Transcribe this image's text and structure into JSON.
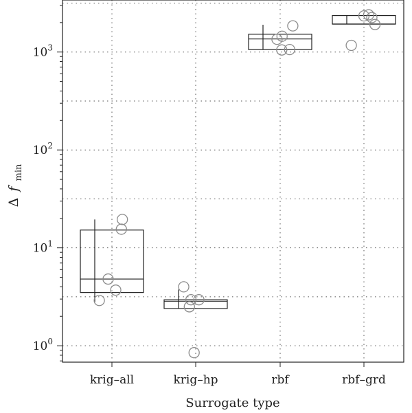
{
  "chart_data": {
    "type": "box",
    "xlabel": "Surrogate type",
    "ylabel_main": "Δ",
    "ylabel_italic": "f",
    "ylabel_sub": "min",
    "y_scale": "log",
    "ylim": [
      0.68,
      3400
    ],
    "y_ticks": [
      {
        "value": 1,
        "base": "10",
        "exp": "0"
      },
      {
        "value": 10,
        "base": "10",
        "exp": "1"
      },
      {
        "value": 100,
        "base": "10",
        "exp": "2"
      },
      {
        "value": 1000,
        "base": "10",
        "exp": "3"
      }
    ],
    "grid": true,
    "categories": [
      "krig–all",
      "krig–hp",
      "rbf",
      "rbf–grd"
    ],
    "boxes": [
      {
        "q1": 3.5,
        "median": 4.8,
        "q3": 15.2,
        "whisker_low": 2.8,
        "whisker_high": 19.5
      },
      {
        "q1": 2.4,
        "median": 2.85,
        "q3": 2.95,
        "whisker_low": 2.4,
        "whisker_high": 3.75
      },
      {
        "q1": 1060,
        "median": 1360,
        "q3": 1520,
        "whisker_low": 1060,
        "whisker_high": 1900
      },
      {
        "q1": 1930,
        "median": 1930,
        "q3": 2360,
        "whisker_low": 1930,
        "whisker_high": 2360
      }
    ],
    "points": [
      [
        {
          "x": -0.4,
          "y": 2.9
        },
        {
          "x": -0.12,
          "y": 4.8
        },
        {
          "x": 0.12,
          "y": 3.7
        },
        {
          "x": 0.3,
          "y": 15.5
        },
        {
          "x": 0.33,
          "y": 19.5
        }
      ],
      [
        {
          "x": -0.38,
          "y": 4.0
        },
        {
          "x": -0.2,
          "y": 2.5
        },
        {
          "x": -0.15,
          "y": 2.95
        },
        {
          "x": -0.05,
          "y": 0.85
        },
        {
          "x": 0.1,
          "y": 2.95
        }
      ],
      [
        {
          "x": -0.1,
          "y": 1350
        },
        {
          "x": 0.05,
          "y": 1050
        },
        {
          "x": 0.06,
          "y": 1450
        },
        {
          "x": 0.3,
          "y": 1060
        },
        {
          "x": 0.4,
          "y": 1850
        }
      ],
      [
        {
          "x": -0.4,
          "y": 1170
        },
        {
          "x": 0.0,
          "y": 2340
        },
        {
          "x": 0.15,
          "y": 2400
        },
        {
          "x": 0.25,
          "y": 2250
        },
        {
          "x": 0.35,
          "y": 1910
        }
      ]
    ]
  }
}
